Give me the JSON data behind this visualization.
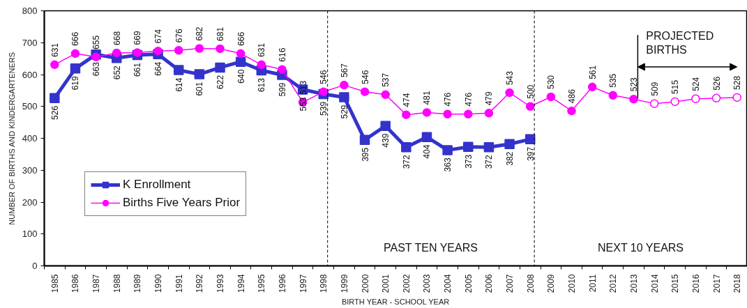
{
  "chart_data": {
    "type": "line",
    "xlabel": "BIRTH YEAR - SCHOOL YEAR",
    "ylabel": "NUMBER OF BIRTHS AND KINDERGARTENERS",
    "x": [
      1985,
      1986,
      1987,
      1988,
      1989,
      1990,
      1991,
      1992,
      1993,
      1994,
      1995,
      1996,
      1997,
      1998,
      1999,
      2000,
      2001,
      2002,
      2003,
      2004,
      2005,
      2006,
      2007,
      2008,
      2009,
      2010,
      2011,
      2012,
      2013,
      2014,
      2015,
      2016,
      2017,
      2018
    ],
    "series": [
      {
        "name": "K Enrollment",
        "color": "#3333cc",
        "marker": "square",
        "values": [
          526,
          619,
          663,
          652,
          661,
          664,
          614,
          601,
          622,
          640,
          613,
          599,
          553,
          539,
          529,
          395,
          439,
          372,
          404,
          363,
          373,
          372,
          382,
          397,
          null,
          null,
          null,
          null,
          null,
          null,
          null,
          null,
          null,
          null
        ]
      },
      {
        "name": "Births Five Years Prior",
        "color": "#ff00ff",
        "marker": "circle",
        "values": [
          631,
          666,
          655,
          668,
          669,
          674,
          676,
          682,
          681,
          666,
          631,
          616,
          513,
          546,
          567,
          546,
          537,
          474,
          481,
          476,
          476,
          479,
          543,
          500,
          530,
          486,
          561,
          535,
          523,
          509,
          515,
          524,
          526,
          528
        ]
      }
    ],
    "xlim": [
      1984.5,
      2018.5
    ],
    "xticks": [
      1985,
      1986,
      1987,
      1988,
      1989,
      1990,
      1991,
      1992,
      1993,
      1994,
      1995,
      1996,
      1997,
      1998,
      1999,
      2000,
      2001,
      2002,
      2003,
      2004,
      2005,
      2006,
      2007,
      2008,
      2009,
      2010,
      2011,
      2012,
      2013,
      2014,
      2015,
      2016,
      2017,
      2018
    ],
    "ylim": [
      0,
      800
    ],
    "yticks": [
      0,
      100,
      200,
      300,
      400,
      500,
      600,
      700,
      800
    ],
    "ref_lines": [
      {
        "axis": "x",
        "value": 1998.2,
        "line_style": "dashed"
      },
      {
        "axis": "x",
        "value": 2008.2,
        "line_style": "dashed"
      },
      {
        "axis": "x",
        "value": 2013.2,
        "line_style": "solid",
        "label": "PROJECTED\nBIRTHS"
      }
    ],
    "annotations": [
      "PAST TEN YEARS",
      "NEXT 10 YEARS"
    ],
    "data_labels": true,
    "legend": "bottom left",
    "grid": false
  }
}
